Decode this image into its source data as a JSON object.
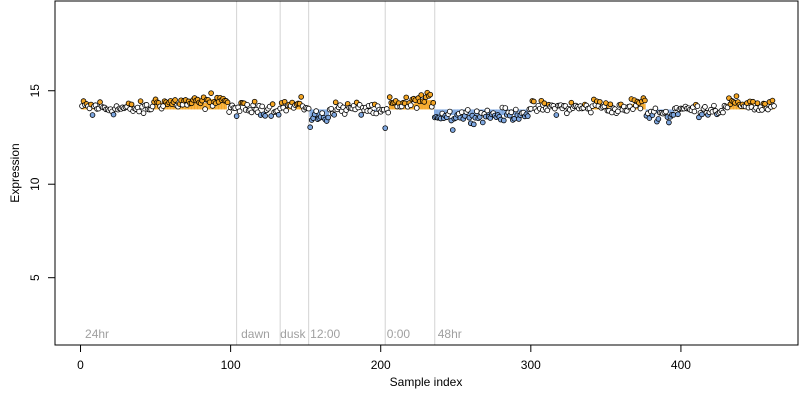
{
  "chart_data": {
    "type": "scatter",
    "title": "",
    "xlabel": "Sample index",
    "ylabel": "Expression",
    "xlim": [
      -17,
      478
    ],
    "ylim": [
      1.4,
      19.8
    ],
    "x_ticks": [
      0,
      100,
      200,
      300,
      400
    ],
    "y_ticks": [
      5,
      10,
      15
    ],
    "grid": false,
    "legend": "none",
    "baseline": 14.0,
    "phase_boundaries": [
      104,
      133,
      152,
      203,
      236
    ],
    "phase_labels": [
      {
        "label": "24hr",
        "x": 3
      },
      {
        "label": "dawn",
        "x": 107
      },
      {
        "label": "dusk",
        "x": 133
      },
      {
        "label": "12:00",
        "x": 153
      },
      {
        "label": "0:00",
        "x": 204
      },
      {
        "label": "48hr",
        "x": 238
      }
    ],
    "colors": {
      "above": "#f5a623",
      "below": "#7ea7e0",
      "neutral": "#ffffff",
      "point_edge": "#000000",
      "boundary": "#d3d3d3"
    },
    "segments": [
      {
        "x0": 1,
        "x1": 14,
        "y": 14.15
      },
      {
        "x0": 15,
        "x1": 47,
        "y": 14.05
      },
      {
        "x0": 48,
        "x1": 86,
        "y": 14.35
      },
      {
        "x0": 87,
        "x1": 97,
        "y": 14.55
      },
      {
        "x0": 98,
        "x1": 104,
        "y": 14.0
      },
      {
        "x0": 105,
        "x1": 133,
        "y": 14.05
      },
      {
        "x0": 134,
        "x1": 152,
        "y": 14.2
      },
      {
        "x0": 153,
        "x1": 165,
        "y": 13.6
      },
      {
        "x0": 166,
        "x1": 195,
        "y": 14.05
      },
      {
        "x0": 196,
        "x1": 205,
        "y": 13.85
      },
      {
        "x0": 206,
        "x1": 222,
        "y": 14.3
      },
      {
        "x0": 223,
        "x1": 235,
        "y": 14.5
      },
      {
        "x0": 236,
        "x1": 255,
        "y": 13.7
      },
      {
        "x0": 256,
        "x1": 290,
        "y": 13.7
      },
      {
        "x0": 291,
        "x1": 300,
        "y": 13.85
      },
      {
        "x0": 301,
        "x1": 340,
        "y": 14.1
      },
      {
        "x0": 341,
        "x1": 352,
        "y": 14.25
      },
      {
        "x0": 353,
        "x1": 365,
        "y": 14.0
      },
      {
        "x0": 366,
        "x1": 376,
        "y": 14.3
      },
      {
        "x0": 377,
        "x1": 395,
        "y": 13.8
      },
      {
        "x0": 396,
        "x1": 430,
        "y": 14.0
      },
      {
        "x0": 431,
        "x1": 448,
        "y": 14.3
      },
      {
        "x0": 449,
        "x1": 462,
        "y": 14.15
      }
    ],
    "n_points": 462
  }
}
